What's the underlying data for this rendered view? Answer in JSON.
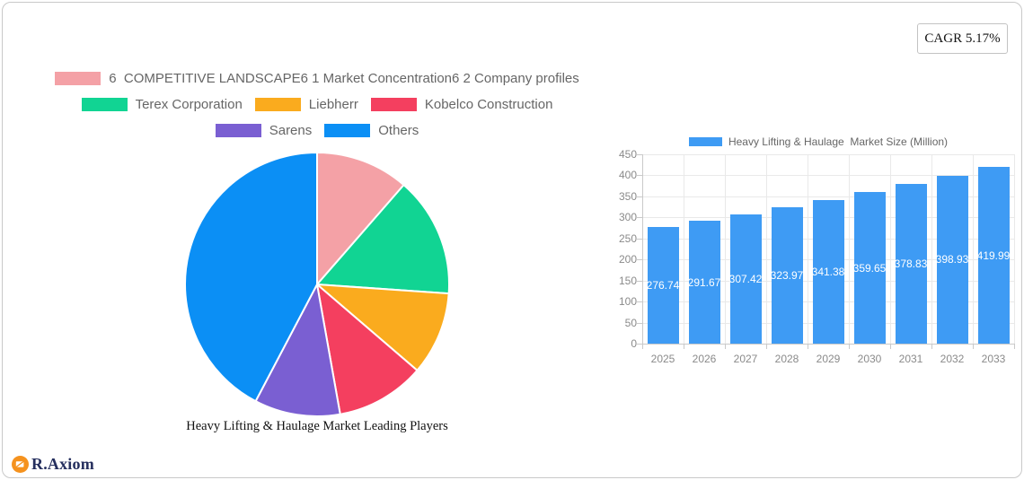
{
  "badge": {
    "label": "CAGR 5.17%"
  },
  "legend": {
    "rows": [
      {
        "items": [
          {
            "label": "6  COMPETITIVE LANDSCAPE6 1 Market Concentration6 2 Company profiles",
            "color": "#F4A1A6"
          }
        ]
      },
      {
        "items": [
          {
            "label": "Terex Corporation",
            "color": "#11D493"
          },
          {
            "label": "Liebherr",
            "color": "#FAAB1E"
          },
          {
            "label": "Kobelco Construction",
            "color": "#F43F5F"
          }
        ]
      },
      {
        "items": [
          {
            "label": "Sarens",
            "color": "#7A5FD2"
          },
          {
            "label": "Others",
            "color": "#0B8FF5"
          }
        ]
      }
    ]
  },
  "chart_data": [
    {
      "type": "pie",
      "title": "Heavy Lifting & Haulage Market Leading Players",
      "labels": [
        "6  COMPETITIVE LANDSCAPE6 1 Market Concentration6 2 Company profiles",
        "Terex Corporation",
        "Liebherr",
        "Kobelco Construction",
        "Sarens",
        "Others"
      ],
      "values_percent": [
        11.4,
        14.7,
        10.2,
        10.9,
        10.5,
        42.3
      ],
      "colors": [
        "#F4A1A6",
        "#11D493",
        "#FAAB1E",
        "#F43F5F",
        "#7A5FD2",
        "#0B8FF5"
      ],
      "start_angle_deg": 0,
      "direction": "clockwise",
      "legend_position": "top",
      "slice_border_color": "#ffffff"
    },
    {
      "type": "bar",
      "legend_label": "Heavy Lifting & Haulage  Market Size (Million)",
      "categories": [
        "2025",
        "2026",
        "2027",
        "2028",
        "2029",
        "2030",
        "2031",
        "2032",
        "2033"
      ],
      "values": [
        276.74,
        291.67,
        307.42,
        323.97,
        341.38,
        359.65,
        378.83,
        398.93,
        419.99
      ],
      "value_labels": [
        "276.74",
        "291.67",
        "307.42",
        "323.97",
        "341.38",
        "359.65",
        "378.83",
        "398.93",
        "419.99"
      ],
      "bar_color": "#3E9BF4",
      "xlabel": "",
      "ylabel": "",
      "ylim": [
        0,
        450
      ],
      "ytick_step": 50,
      "grid": true,
      "value_label_style": "white-inside-middle"
    }
  ],
  "logo": {
    "text": "R.Axiom",
    "icon": "pie-chart-logo-icon",
    "icon_color": "#F5921E",
    "text_color": "#252F5E"
  }
}
